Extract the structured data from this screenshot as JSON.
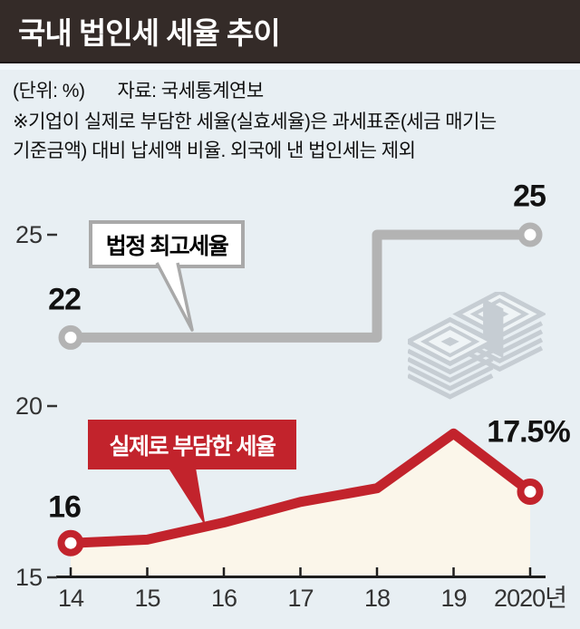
{
  "header": {
    "title": "국내 법인세 세율 추이"
  },
  "meta": {
    "unit": "(단위: %)",
    "source": "자료: 국세통계연보",
    "note_line1": "※기업이 실제로 부담한 세율(실효세율)은 과세표준(세금 매기는",
    "note_line2": "기준금액) 대비 납세액 비율. 외국에 낸 법인세는 제외"
  },
  "chart_data": {
    "type": "line",
    "title": "국내 법인세 세율 추이",
    "unit": "%",
    "x": [
      2014,
      2015,
      2016,
      2017,
      2018,
      2019,
      2020
    ],
    "x_tick_labels": [
      "14",
      "15",
      "16",
      "17",
      "18",
      "19",
      "2020년"
    ],
    "y_ticks": [
      15,
      20,
      25
    ],
    "ylim": [
      15,
      25.8
    ],
    "grid": false,
    "legend_position": "callouts-on-plot",
    "series": [
      {
        "name": "법정 최고세율",
        "type": "step",
        "color": "#b3b3b3",
        "values": [
          22,
          22,
          22,
          22,
          25,
          25,
          25
        ],
        "endpoint_markers": true
      },
      {
        "name": "실제로 부담한 세율",
        "type": "line",
        "color": "#c2232c",
        "area_fill": "#fbf6ea",
        "values": [
          16.0,
          16.1,
          16.6,
          17.2,
          17.6,
          19.2,
          17.5
        ],
        "endpoint_markers": true
      }
    ],
    "point_labels": {
      "statutory_start": "22",
      "statutory_end": "25",
      "effective_start": "16",
      "effective_end": "17.5%"
    }
  },
  "icons": {
    "money_stack": "banknote-stacks"
  },
  "colors": {
    "background": "#e8eff3",
    "header_bg": "#342b28",
    "header_fg": "#ffffff",
    "statutory_gray": "#b3b3b3",
    "effective_red": "#c2232c",
    "area_cream": "#fbf6ea",
    "axis": "#1e1e1e",
    "tick_text": "#333333",
    "callout_border": "#a9a9a9",
    "money_icon": "#c6cdd3"
  }
}
